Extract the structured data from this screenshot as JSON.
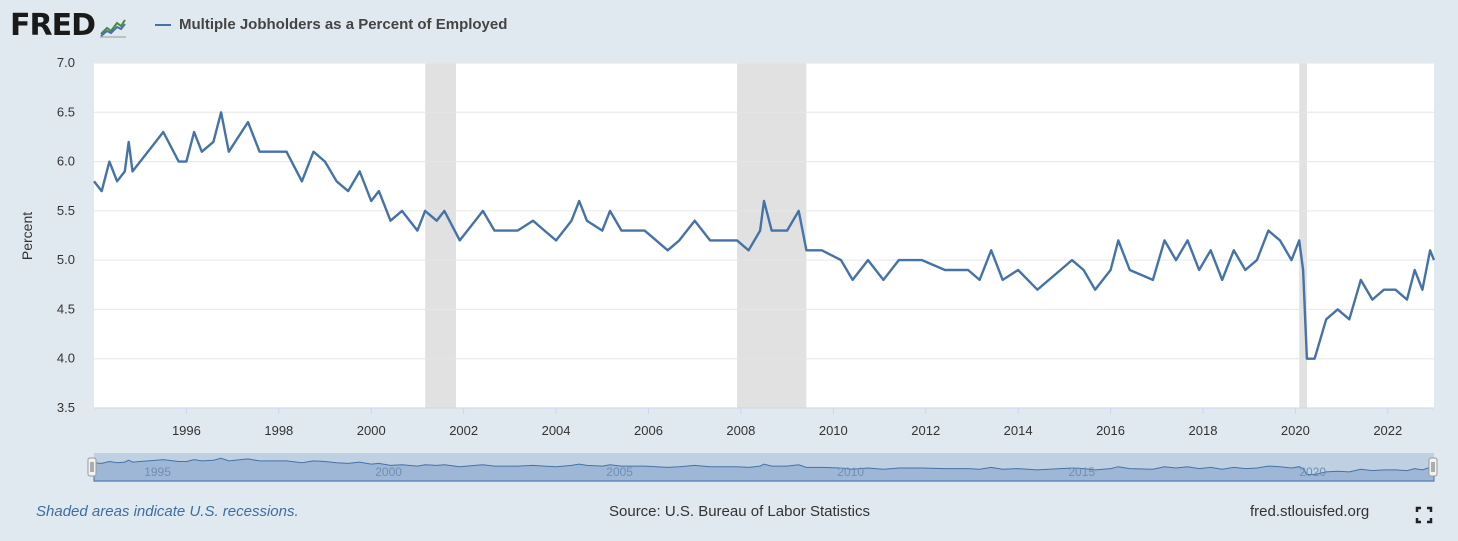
{
  "header": {
    "logo_text": "FRED",
    "logo_icon": "trend-chart-icon",
    "series_title": "Multiple Jobholders as a Percent of Employed",
    "series_color": "#4572a7"
  },
  "footer": {
    "recession_note": "Shaded areas indicate U.S. recessions.",
    "source": "Source: U.S. Bureau of Labor Statistics",
    "site": "fred.stlouisfed.org",
    "fullscreen_icon": "fullscreen-icon"
  },
  "colors": {
    "background": "#e1e9f0",
    "plot_background": "#ffffff",
    "recession_shade": "#e1e1e1",
    "line": "#4572a7",
    "navigator_fill": "#a9bfdc",
    "navigator_line": "#4572a7"
  },
  "chart_data": {
    "type": "line",
    "title": "Multiple Jobholders as a Percent of Employed",
    "ylabel": "Percent",
    "xlabel": "",
    "xlim": [
      "1994-01",
      "2023-01"
    ],
    "ylim": [
      3.5,
      7.0
    ],
    "yticks": [
      "3.5",
      "4.0",
      "4.5",
      "5.0",
      "5.5",
      "6.0",
      "6.5",
      "7.0"
    ],
    "xticks": [
      "1996",
      "1998",
      "2000",
      "2002",
      "2004",
      "2006",
      "2008",
      "2010",
      "2012",
      "2014",
      "2016",
      "2018",
      "2020",
      "2022"
    ],
    "navigator_labels": [
      "1995",
      "2000",
      "2005",
      "2010",
      "2015",
      "2020"
    ],
    "grid": "horizontal",
    "recessions": [
      [
        "2001-03",
        "2001-11"
      ],
      [
        "2007-12",
        "2009-06"
      ],
      [
        "2020-02",
        "2020-04"
      ]
    ],
    "series": [
      {
        "points": [
          [
            "1994-01",
            5.8
          ],
          [
            "1994-03",
            5.7
          ],
          [
            "1994-05",
            6.0
          ],
          [
            "1994-07",
            5.8
          ],
          [
            "1994-09",
            5.9
          ],
          [
            "1994-10",
            6.2
          ],
          [
            "1994-11",
            5.9
          ],
          [
            "1995-03",
            6.1
          ],
          [
            "1995-07",
            6.3
          ],
          [
            "1995-11",
            6.0
          ],
          [
            "1996-01",
            6.0
          ],
          [
            "1996-03",
            6.3
          ],
          [
            "1996-05",
            6.1
          ],
          [
            "1996-08",
            6.2
          ],
          [
            "1996-10",
            6.5
          ],
          [
            "1996-12",
            6.1
          ],
          [
            "1997-05",
            6.4
          ],
          [
            "1997-08",
            6.1
          ],
          [
            "1997-12",
            6.1
          ],
          [
            "1998-03",
            6.1
          ],
          [
            "1998-07",
            5.8
          ],
          [
            "1998-10",
            6.1
          ],
          [
            "1999-01",
            6.0
          ],
          [
            "1999-04",
            5.8
          ],
          [
            "1999-07",
            5.7
          ],
          [
            "1999-10",
            5.9
          ],
          [
            "2000-01",
            5.6
          ],
          [
            "2000-03",
            5.7
          ],
          [
            "2000-06",
            5.4
          ],
          [
            "2000-09",
            5.5
          ],
          [
            "2001-01",
            5.3
          ],
          [
            "2001-03",
            5.5
          ],
          [
            "2001-06",
            5.4
          ],
          [
            "2001-08",
            5.5
          ],
          [
            "2001-12",
            5.2
          ],
          [
            "2002-04",
            5.4
          ],
          [
            "2002-06",
            5.5
          ],
          [
            "2002-09",
            5.3
          ],
          [
            "2003-03",
            5.3
          ],
          [
            "2003-07",
            5.4
          ],
          [
            "2003-10",
            5.3
          ],
          [
            "2004-01",
            5.2
          ],
          [
            "2004-05",
            5.4
          ],
          [
            "2004-07",
            5.6
          ],
          [
            "2004-09",
            5.4
          ],
          [
            "2005-01",
            5.3
          ],
          [
            "2005-03",
            5.5
          ],
          [
            "2005-06",
            5.3
          ],
          [
            "2005-12",
            5.3
          ],
          [
            "2006-03",
            5.2
          ],
          [
            "2006-06",
            5.1
          ],
          [
            "2006-09",
            5.2
          ],
          [
            "2007-01",
            5.4
          ],
          [
            "2007-05",
            5.2
          ],
          [
            "2007-12",
            5.2
          ],
          [
            "2008-03",
            5.1
          ],
          [
            "2008-06",
            5.3
          ],
          [
            "2008-07",
            5.6
          ],
          [
            "2008-09",
            5.3
          ],
          [
            "2009-01",
            5.3
          ],
          [
            "2009-04",
            5.5
          ],
          [
            "2009-06",
            5.1
          ],
          [
            "2009-10",
            5.1
          ],
          [
            "2010-03",
            5.0
          ],
          [
            "2010-06",
            4.8
          ],
          [
            "2010-10",
            5.0
          ],
          [
            "2011-02",
            4.8
          ],
          [
            "2011-06",
            5.0
          ],
          [
            "2011-12",
            5.0
          ],
          [
            "2012-06",
            4.9
          ],
          [
            "2012-12",
            4.9
          ],
          [
            "2013-03",
            4.8
          ],
          [
            "2013-06",
            5.1
          ],
          [
            "2013-09",
            4.8
          ],
          [
            "2014-01",
            4.9
          ],
          [
            "2014-06",
            4.7
          ],
          [
            "2014-12",
            4.9
          ],
          [
            "2015-03",
            5.0
          ],
          [
            "2015-06",
            4.9
          ],
          [
            "2015-09",
            4.7
          ],
          [
            "2016-01",
            4.9
          ],
          [
            "2016-03",
            5.2
          ],
          [
            "2016-06",
            4.9
          ],
          [
            "2016-12",
            4.8
          ],
          [
            "2017-03",
            5.2
          ],
          [
            "2017-06",
            5.0
          ],
          [
            "2017-09",
            5.2
          ],
          [
            "2017-12",
            4.9
          ],
          [
            "2018-03",
            5.1
          ],
          [
            "2018-06",
            4.8
          ],
          [
            "2018-09",
            5.1
          ],
          [
            "2018-12",
            4.9
          ],
          [
            "2019-03",
            5.0
          ],
          [
            "2019-06",
            5.3
          ],
          [
            "2019-09",
            5.2
          ],
          [
            "2019-12",
            5.0
          ],
          [
            "2020-02",
            5.2
          ],
          [
            "2020-03",
            4.9
          ],
          [
            "2020-04",
            4.0
          ],
          [
            "2020-06",
            4.0
          ],
          [
            "2020-09",
            4.4
          ],
          [
            "2020-12",
            4.5
          ],
          [
            "2021-03",
            4.4
          ],
          [
            "2021-06",
            4.8
          ],
          [
            "2021-09",
            4.6
          ],
          [
            "2021-12",
            4.7
          ],
          [
            "2022-03",
            4.7
          ],
          [
            "2022-06",
            4.6
          ],
          [
            "2022-08",
            4.9
          ],
          [
            "2022-10",
            4.7
          ],
          [
            "2022-12",
            5.1
          ],
          [
            "2023-01",
            5.0
          ]
        ]
      }
    ]
  }
}
